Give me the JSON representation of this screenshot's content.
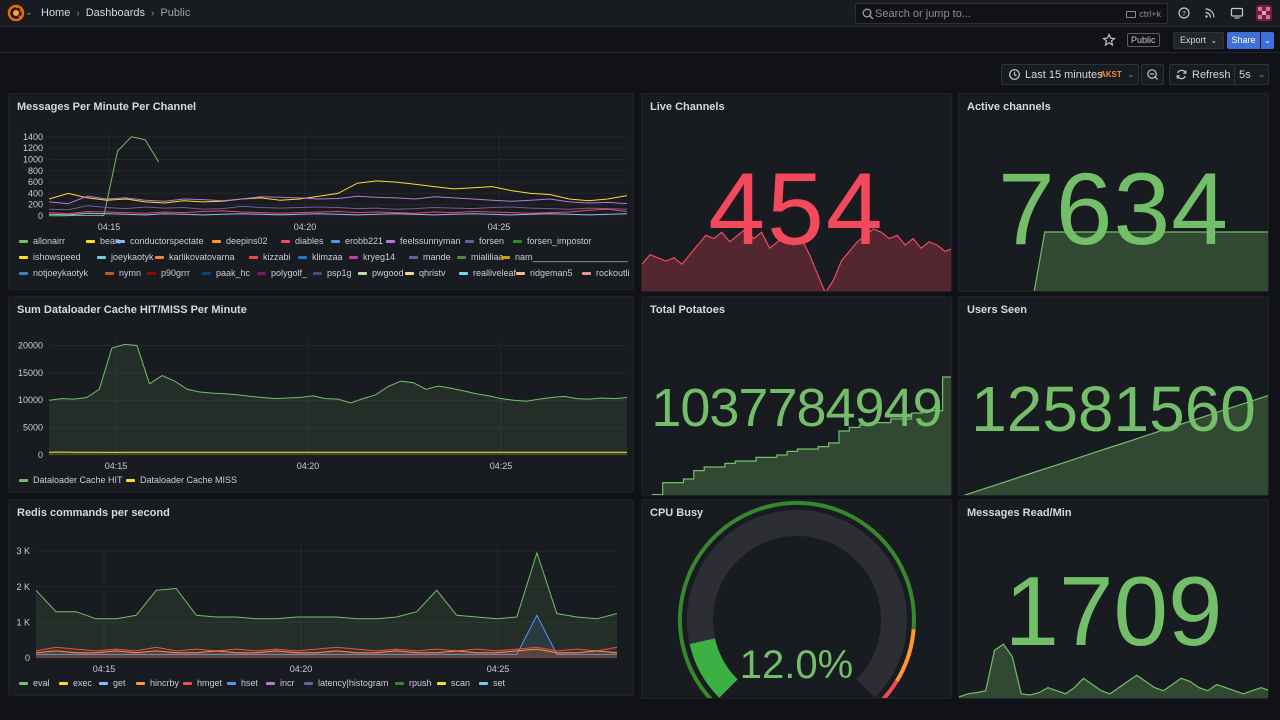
{
  "nav": {
    "breadcrumbs": [
      "Home",
      "Dashboards",
      "Public"
    ],
    "search_placeholder": "Search or jump to...",
    "search_shortcut": "ctrl+k"
  },
  "toolbar": {
    "badge": "Public",
    "export_label": "Export",
    "share_label": "Share"
  },
  "time": {
    "range_label": "Last 15 minutes",
    "timezone": "AKST",
    "refresh_label": "Refresh",
    "interval": "5s"
  },
  "colors": {
    "green": "#73bf69",
    "red": "#f2495c",
    "yellow": "#fade2a",
    "blue": "#5794f2",
    "orange": "#ff9830",
    "purple": "#b877d9"
  },
  "panels": {
    "messages": {
      "title": "Messages Per Minute Per Channel",
      "legend": [
        {
          "name": "allonairr",
          "color": "#73bf69"
        },
        {
          "name": "bean",
          "color": "#fade2a"
        },
        {
          "name": "conductorspectate",
          "color": "#8ab8ff"
        },
        {
          "name": "deepins02",
          "color": "#ff9830"
        },
        {
          "name": "diables",
          "color": "#f2495c"
        },
        {
          "name": "erobb221",
          "color": "#5794f2"
        },
        {
          "name": "feelssunnyman",
          "color": "#b877d9"
        },
        {
          "name": "forsen",
          "color": "#705da0"
        },
        {
          "name": "forsen_impostor",
          "color": "#37872d"
        },
        {
          "name": "ishowspeed",
          "color": "#fade2a"
        },
        {
          "name": "joeykaotyk",
          "color": "#6ed0e0"
        },
        {
          "name": "karlikovatovarna",
          "color": "#ef843c"
        },
        {
          "name": "kizzabi",
          "color": "#e24d42"
        },
        {
          "name": "klimzaa",
          "color": "#1f78c1"
        },
        {
          "name": "kryeg14",
          "color": "#ba43a9"
        },
        {
          "name": "mande",
          "color": "#705da0"
        },
        {
          "name": "mialiliaa",
          "color": "#508642"
        },
        {
          "name": "nam___________________",
          "color": "#cca300"
        },
        {
          "name": "notjoeykaotyk",
          "color": "#447ebc"
        },
        {
          "name": "nymn",
          "color": "#c15c17"
        },
        {
          "name": "p90grrr",
          "color": "#890f02"
        },
        {
          "name": "paak_hc",
          "color": "#0a437c"
        },
        {
          "name": "polygolf_",
          "color": "#6d1f62"
        },
        {
          "name": "psp1g",
          "color": "#584477"
        },
        {
          "name": "pwgood",
          "color": "#b7dbab"
        },
        {
          "name": "qhristv",
          "color": "#f4d598"
        },
        {
          "name": "realliveleaf",
          "color": "#70dbed"
        },
        {
          "name": "ridgeman5",
          "color": "#f9ba8f"
        },
        {
          "name": "rockoutli",
          "color": "#f29191"
        }
      ]
    },
    "live_channels": {
      "title": "Live Channels",
      "value": "454"
    },
    "active_channels": {
      "title": "Active channels",
      "value": "7634"
    },
    "dataloader": {
      "title": "Sum Dataloader Cache HIT/MISS Per Minute",
      "legend": [
        {
          "name": "Dataloader Cache HIT",
          "color": "#73bf69"
        },
        {
          "name": "Dataloader Cache MISS",
          "color": "#fade2a"
        }
      ]
    },
    "potatoes": {
      "title": "Total Potatoes",
      "value": "1037784949"
    },
    "users_seen": {
      "title": "Users Seen",
      "value": "12581560"
    },
    "redis": {
      "title": "Redis commands per second",
      "legend": [
        {
          "name": "eval",
          "color": "#73bf69"
        },
        {
          "name": "exec",
          "color": "#fade2a"
        },
        {
          "name": "get",
          "color": "#8ab8ff"
        },
        {
          "name": "hincrby",
          "color": "#ff9830"
        },
        {
          "name": "hmget",
          "color": "#f2495c"
        },
        {
          "name": "hset",
          "color": "#5794f2"
        },
        {
          "name": "incr",
          "color": "#b877d9"
        },
        {
          "name": "latency|histogram",
          "color": "#705da0"
        },
        {
          "name": "rpush",
          "color": "#37872d"
        },
        {
          "name": "scan",
          "color": "#fade2a"
        },
        {
          "name": "set",
          "color": "#6ed0e0"
        }
      ]
    },
    "cpu": {
      "title": "CPU Busy",
      "value": "12.0%",
      "percent": 12.0
    },
    "messages_read": {
      "title": "Messages Read/Min",
      "value": "1709"
    }
  },
  "chart_data": [
    {
      "type": "line",
      "title": "Messages Per Minute Per Channel",
      "x_ticks": [
        "04:15",
        "04:20",
        "04:25"
      ],
      "y_ticks": [
        0,
        200,
        400,
        600,
        800,
        1000,
        1200,
        1400
      ],
      "ylim": [
        0,
        1450
      ],
      "series": [
        {
          "name": "allonairr",
          "values": [
            5,
            5,
            10,
            10,
            10,
            1150,
            1400,
            1350,
            950
          ]
        },
        {
          "name": "bean",
          "values": [
            300,
            400,
            320,
            280,
            300,
            250,
            230,
            270,
            250,
            260,
            300,
            320,
            280,
            300,
            350,
            400,
            580,
            620,
            600,
            560,
            520,
            480,
            500,
            520,
            450,
            400,
            380,
            300,
            270,
            300,
            360
          ]
        },
        {
          "name": "feelssunnyman",
          "values": [
            250,
            220,
            350,
            300,
            320,
            280,
            260,
            300,
            290,
            270,
            300,
            340,
            330,
            320,
            300,
            310,
            350,
            330,
            320,
            300,
            340,
            320,
            300,
            280,
            260,
            280,
            300,
            250,
            230,
            240,
            220
          ]
        },
        {
          "name": "forsen",
          "values": [
            120,
            110,
            180,
            150,
            130,
            160,
            140,
            150,
            120,
            130,
            170,
            150,
            140,
            150,
            160,
            150,
            130,
            140,
            120,
            130,
            150,
            140,
            130,
            150,
            160,
            140,
            130,
            120,
            140,
            130,
            120
          ]
        },
        {
          "name": "diables",
          "values": [
            60,
            40,
            80,
            70,
            60,
            50,
            70,
            60,
            80,
            90,
            70,
            60,
            50,
            60,
            70,
            80,
            60,
            70,
            60,
            50,
            70,
            60,
            80,
            70,
            60,
            50,
            60,
            70,
            100,
            120,
            80
          ]
        },
        {
          "name": "conductorspectate",
          "values": [
            30,
            20,
            50,
            40,
            30,
            20,
            40,
            30,
            20,
            30,
            40,
            30,
            20,
            30,
            40,
            30,
            20,
            30,
            40,
            30,
            20,
            30,
            40,
            30,
            20,
            30,
            40,
            30,
            20,
            30,
            40
          ]
        }
      ]
    },
    {
      "type": "line",
      "title": "Sum Dataloader Cache HIT/MISS Per Minute",
      "x_ticks": [
        "04:15",
        "04:20",
        "04:25"
      ],
      "y_ticks": [
        0,
        5000,
        10000,
        15000,
        20000
      ],
      "ylim": [
        0,
        21000
      ],
      "series": [
        {
          "name": "Dataloader Cache HIT",
          "values": [
            10000,
            10300,
            10200,
            10500,
            12000,
            19500,
            20200,
            20000,
            13000,
            14500,
            13500,
            12000,
            11500,
            11300,
            11200,
            11000,
            10700,
            10500,
            10300,
            10400,
            10500,
            10800,
            10300,
            10200,
            9500,
            10300,
            11000,
            12500,
            13500,
            13200,
            12000,
            12600,
            12200,
            11700,
            11200,
            10800,
            10300,
            10000,
            9800,
            10200,
            10500,
            10700,
            10300,
            10200,
            10400,
            10300,
            10500
          ]
        },
        {
          "name": "Dataloader Cache MISS",
          "values": [
            500,
            550,
            500,
            520,
            500,
            480,
            500,
            520,
            500,
            510,
            500,
            500,
            490,
            500,
            510,
            500,
            520,
            500,
            490,
            500,
            510,
            500,
            500,
            520,
            500,
            490,
            500,
            510,
            500,
            500,
            520,
            500,
            490,
            500,
            510,
            500,
            500,
            520,
            500,
            490,
            500,
            510,
            500,
            500,
            520,
            500,
            510
          ]
        }
      ]
    },
    {
      "type": "area",
      "title": "Redis commands per second",
      "x_ticks": [
        "04:15",
        "04:20",
        "04:25"
      ],
      "y_ticks": [
        "0",
        "1 K",
        "2 K",
        "3 K"
      ],
      "ylim": [
        0,
        3200
      ],
      "series": [
        {
          "name": "eval",
          "values": [
            1900,
            1300,
            1300,
            1100,
            1100,
            1200,
            1900,
            1950,
            1200,
            1150,
            1150,
            1100,
            1100,
            1150,
            1150,
            1150,
            1100,
            1100,
            1150,
            1300,
            1900,
            1200,
            1150,
            1100,
            1150,
            2950,
            1250,
            1150,
            1100,
            1250
          ]
        },
        {
          "name": "hset",
          "values": [
            100,
            100,
            100,
            100,
            100,
            100,
            100,
            100,
            100,
            100,
            100,
            100,
            100,
            100,
            100,
            100,
            100,
            100,
            100,
            100,
            100,
            100,
            100,
            100,
            100,
            1200,
            100,
            100,
            100,
            100
          ]
        },
        {
          "name": "hmget",
          "values": [
            200,
            300,
            250,
            200,
            250,
            200,
            300,
            200,
            250,
            200,
            250,
            200,
            250,
            200,
            250,
            300,
            250,
            200,
            250,
            200,
            250,
            200,
            250,
            200,
            250,
            300,
            200,
            250,
            200,
            300
          ]
        },
        {
          "name": "hincrby",
          "values": [
            150,
            200,
            150,
            150,
            200,
            150,
            200,
            150,
            150,
            200,
            150,
            150,
            200,
            150,
            150,
            200,
            150,
            150,
            200,
            150,
            150,
            200,
            150,
            150,
            200,
            250,
            150,
            150,
            200,
            150
          ]
        }
      ]
    },
    {
      "type": "gauge",
      "title": "CPU Busy",
      "value": 12.0,
      "min": 0,
      "max": 100,
      "unit": "%"
    }
  ]
}
